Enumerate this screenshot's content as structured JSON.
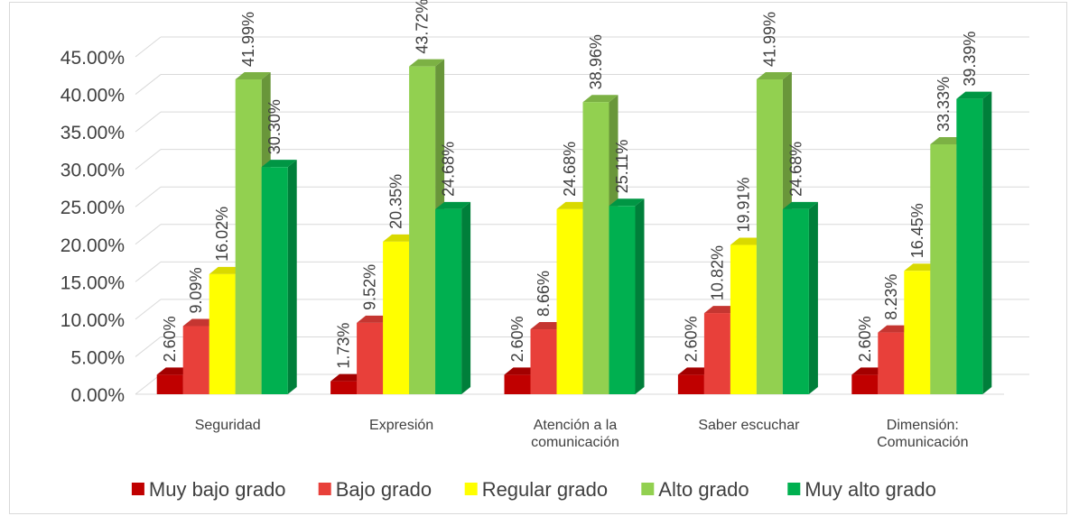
{
  "chart_data": {
    "type": "bar",
    "title": "",
    "xlabel": "",
    "ylabel": "",
    "ylim": [
      0,
      45
    ],
    "ytick_labels": [
      "0.00%",
      "5.00%",
      "10.00%",
      "15.00%",
      "20.00%",
      "25.00%",
      "30.00%",
      "35.00%",
      "40.00%",
      "45.00%"
    ],
    "grid": true,
    "legend_position": "bottom",
    "categories": [
      [
        "Seguridad"
      ],
      [
        "Expresión"
      ],
      [
        "Atención a la",
        "comunicación"
      ],
      [
        "Saber escuchar"
      ],
      [
        "Dimensión:",
        "Comunicación"
      ]
    ],
    "series": [
      {
        "name": "Muy bajo grado",
        "color": "#C00000",
        "values": [
          2.6,
          1.73,
          2.6,
          2.6,
          2.6
        ],
        "labels": [
          "2.60%",
          "1.73%",
          "2.60%",
          "2.60%",
          "2.60%"
        ]
      },
      {
        "name": "Bajo grado",
        "color": "#E8403A",
        "values": [
          9.09,
          9.52,
          8.66,
          10.82,
          8.23
        ],
        "labels": [
          "9.09%",
          "9.52%",
          "8.66%",
          "10.82%",
          "8.23%"
        ]
      },
      {
        "name": "Regular grado",
        "color": "#FFFF00",
        "values": [
          16.02,
          20.35,
          24.68,
          19.91,
          16.45
        ],
        "labels": [
          "16.02%",
          "20.35%",
          "24.68%",
          "19.91%",
          "16.45%"
        ]
      },
      {
        "name": "Alto grado",
        "color": "#92D050",
        "values": [
          41.99,
          43.72,
          38.96,
          41.99,
          33.33
        ],
        "labels": [
          "41.99%",
          "43.72%",
          "38.96%",
          "41.99%",
          "33.33%"
        ]
      },
      {
        "name": "Muy alto grado",
        "color": "#00B050",
        "values": [
          30.3,
          24.68,
          25.11,
          24.68,
          39.39
        ],
        "labels": [
          "30.30%",
          "24.68%",
          "25.11%",
          "24.68%",
          "39.39%"
        ]
      }
    ]
  }
}
